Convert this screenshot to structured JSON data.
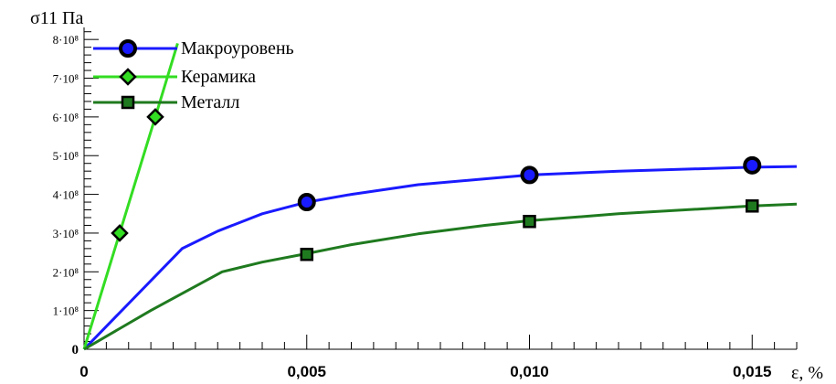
{
  "chart_data": {
    "type": "line",
    "ylabel": "σ11 Па",
    "xlabel": "ε, %",
    "xlim": [
      0,
      0.016
    ],
    "ylim": [
      0,
      850000000.0
    ],
    "x_ticks": [
      {
        "value": 0,
        "label": "0"
      },
      {
        "value": 0.005,
        "label": "0,005"
      },
      {
        "value": 0.01,
        "label": "0,010"
      },
      {
        "value": 0.015,
        "label": "0,015"
      }
    ],
    "y_ticks": [
      {
        "value": 0,
        "label": "0"
      },
      {
        "value": 100000000.0,
        "label": "1·10⁸"
      },
      {
        "value": 200000000.0,
        "label": "2·10⁸"
      },
      {
        "value": 300000000.0,
        "label": "3·10⁸"
      },
      {
        "value": 400000000.0,
        "label": "4·10⁸"
      },
      {
        "value": 500000000.0,
        "label": "5·10⁸"
      },
      {
        "value": 600000000.0,
        "label": "6·10⁸"
      },
      {
        "value": 700000000.0,
        "label": "7·10⁸"
      },
      {
        "value": 800000000.0,
        "label": "8·10⁸"
      }
    ],
    "grid": false,
    "legend_position": "top-left",
    "series": [
      {
        "name": "Макроуровень",
        "color": "#1a1aff",
        "marker": "circle",
        "x": [
          0,
          0.0022,
          0.003,
          0.004,
          0.005,
          0.006,
          0.0075,
          0.009,
          0.01,
          0.012,
          0.015,
          0.016
        ],
        "y": [
          0,
          260000000.0,
          305000000.0,
          350000000.0,
          380000000.0,
          400000000.0,
          425000000.0,
          440000000.0,
          450000000.0,
          460000000.0,
          470000000.0,
          472000000.0
        ],
        "marker_x": [
          0.005,
          0.01,
          0.015
        ],
        "marker_y": [
          380000000.0,
          450000000.0,
          475000000.0
        ]
      },
      {
        "name": "Керамика",
        "color": "#33dd22",
        "marker": "diamond",
        "x": [
          0,
          0.0008,
          0.0016,
          0.0021
        ],
        "y": [
          0,
          300000000.0,
          600000000.0,
          790000000.0
        ],
        "marker_x": [
          0.0008,
          0.0016
        ],
        "marker_y": [
          300000000.0,
          600000000.0
        ]
      },
      {
        "name": "Металл",
        "color": "#1f7a1f",
        "marker": "square",
        "x": [
          0,
          0.0015,
          0.0031,
          0.004,
          0.005,
          0.006,
          0.0075,
          0.009,
          0.01,
          0.012,
          0.015,
          0.016
        ],
        "y": [
          0,
          100000000.0,
          200000000.0,
          225000000.0,
          247000000.0,
          270000000.0,
          298000000.0,
          320000000.0,
          332000000.0,
          350000000.0,
          370000000.0,
          375000000.0
        ],
        "marker_x": [
          0.005,
          0.01,
          0.015
        ],
        "marker_y": [
          245000000.0,
          330000000.0,
          370000000.0
        ]
      }
    ]
  }
}
